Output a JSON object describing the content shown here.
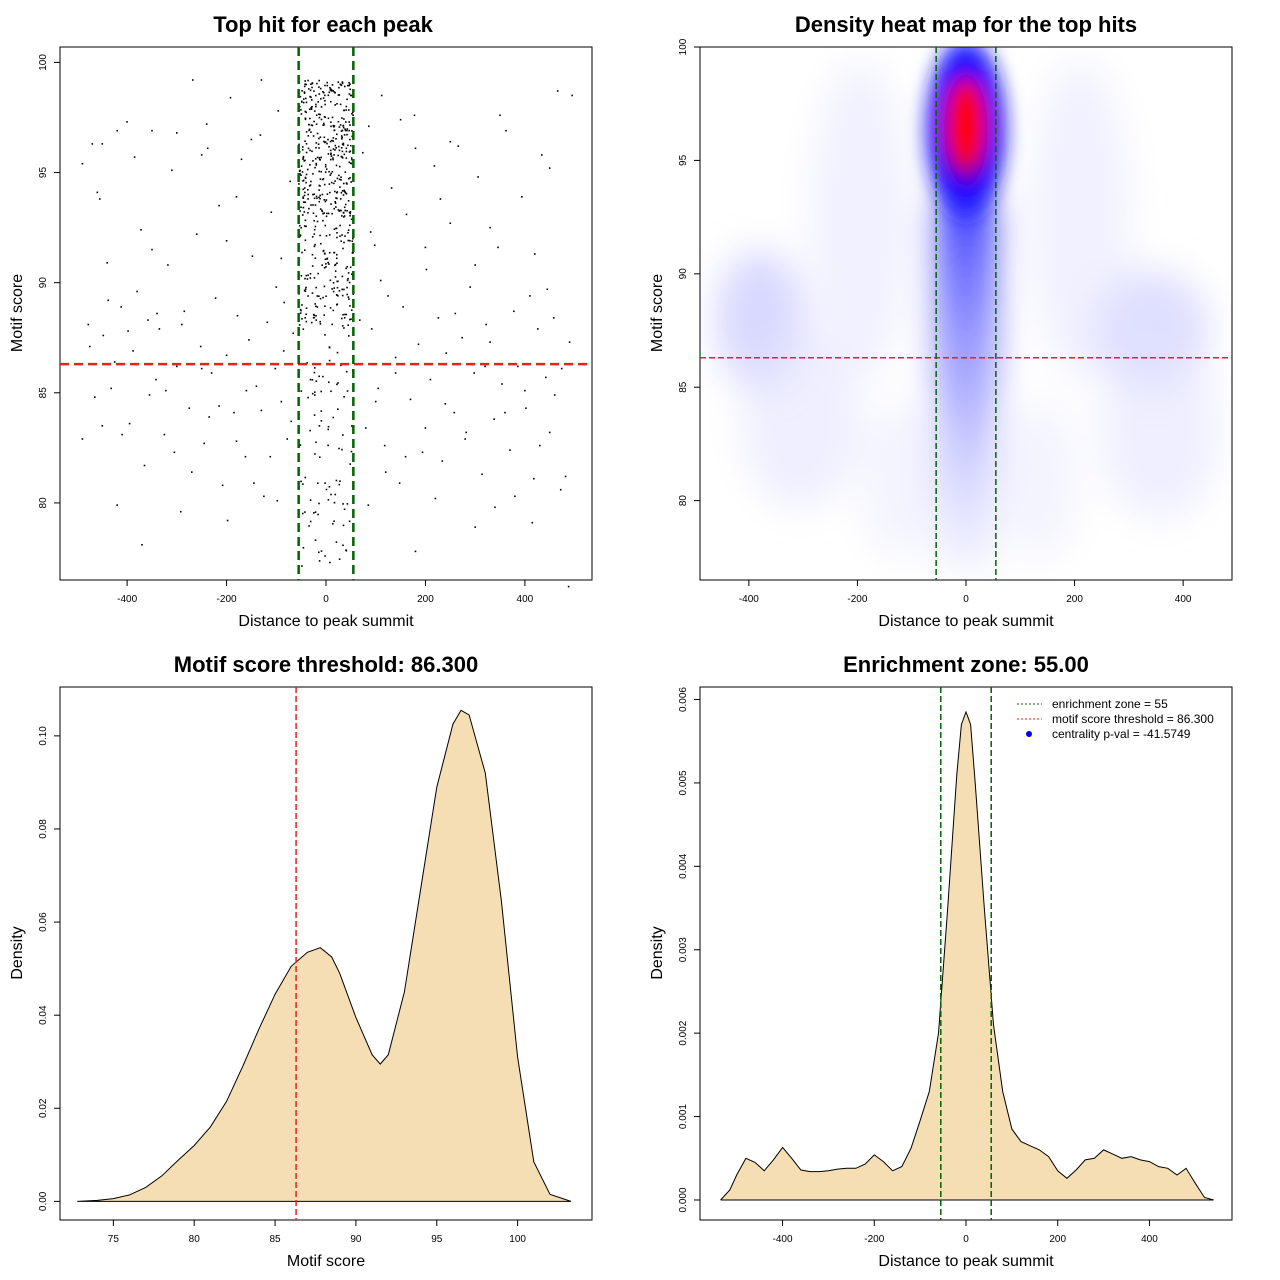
{
  "chart_data": [
    {
      "id": "scatter",
      "type": "scatter",
      "title": "Top hit for each peak",
      "xlabel": "Distance to peak summit",
      "ylabel": "Motif score",
      "xlim": [
        -535,
        535
      ],
      "ylim": [
        76.5,
        100.7
      ],
      "xticks": [
        -400,
        -200,
        0,
        200,
        400
      ],
      "xtick_labels": [
        "-400",
        "-200",
        "0",
        "200",
        "400"
      ],
      "yticks": [
        80,
        85,
        90,
        95,
        100
      ],
      "ytick_labels": [
        "80",
        "85",
        "90",
        "95",
        "100"
      ],
      "threshold_y": 86.3,
      "enrichment_x": [
        -55,
        55
      ],
      "threshold_color": "#e8211d",
      "enrichment_color": "#006400",
      "points": [
        [
          -490,
          95.4
        ],
        [
          -478,
          88.1
        ],
        [
          -470,
          96.3
        ],
        [
          -465,
          84.8
        ],
        [
          -455,
          93.8
        ],
        [
          -448,
          87.6
        ],
        [
          -440,
          90.9
        ],
        [
          -432,
          85.2
        ],
        [
          -420,
          79.9
        ],
        [
          -412,
          88.9
        ],
        [
          -400,
          97.3
        ],
        [
          -395,
          83.6
        ],
        [
          -388,
          86.9
        ],
        [
          -380,
          89.6
        ],
        [
          -372,
          92.4
        ],
        [
          -365,
          81.7
        ],
        [
          -358,
          88.3
        ],
        [
          -350,
          96.9
        ],
        [
          -342,
          85.6
        ],
        [
          -335,
          87.9
        ],
        [
          -325,
          83.1
        ],
        [
          -318,
          90.8
        ],
        [
          -310,
          95.1
        ],
        [
          -300,
          86.2
        ],
        [
          -292,
          79.6
        ],
        [
          -285,
          88.7
        ],
        [
          -275,
          84.3
        ],
        [
          -268,
          99.2
        ],
        [
          -260,
          92.2
        ],
        [
          -252,
          87.1
        ],
        [
          -245,
          82.7
        ],
        [
          -238,
          96.1
        ],
        [
          -230,
          85.9
        ],
        [
          -222,
          89.3
        ],
        [
          -215,
          93.5
        ],
        [
          -208,
          80.8
        ],
        [
          -200,
          86.7
        ],
        [
          -192,
          98.4
        ],
        [
          -185,
          84.1
        ],
        [
          -178,
          88.5
        ],
        [
          -170,
          95.6
        ],
        [
          -162,
          82.1
        ],
        [
          -155,
          87.4
        ],
        [
          -148,
          91.2
        ],
        [
          -140,
          85.3
        ],
        [
          -132,
          96.7
        ],
        [
          -125,
          80.3
        ],
        [
          -118,
          88.2
        ],
        [
          -110,
          93.2
        ],
        [
          -102,
          86.1
        ],
        [
          -96,
          97.8
        ],
        [
          -90,
          84.6
        ],
        [
          -84,
          89.1
        ],
        [
          -78,
          82.9
        ],
        [
          -72,
          94.6
        ],
        [
          -66,
          87.7
        ],
        [
          -490,
          82.9
        ],
        [
          -475,
          87.1
        ],
        [
          -460,
          94.1
        ],
        [
          -450,
          83.5
        ],
        [
          -438,
          89.2
        ],
        [
          -425,
          86.4
        ],
        [
          -410,
          83.1
        ],
        [
          -398,
          87.8
        ],
        [
          -385,
          95.7
        ],
        [
          -370,
          78.1
        ],
        [
          -355,
          84.9
        ],
        [
          -340,
          88.6
        ],
        [
          -322,
          85.1
        ],
        [
          -305,
          82.3
        ],
        [
          -290,
          88.1
        ],
        [
          -270,
          81.4
        ],
        [
          -250,
          86.1
        ],
        [
          -235,
          83.9
        ],
        [
          -215,
          84.4
        ],
        [
          -198,
          79.2
        ],
        [
          -180,
          82.8
        ],
        [
          -160,
          85.1
        ],
        [
          -145,
          80.9
        ],
        [
          -130,
          84.2
        ],
        [
          -112,
          82.1
        ],
        [
          -98,
          80.1
        ],
        [
          -85,
          86.9
        ],
        [
          -70,
          83.7
        ],
        [
          68,
          88.3
        ],
        [
          74,
          95.9
        ],
        [
          80,
          83.4
        ],
        [
          86,
          97.1
        ],
        [
          92,
          87.9
        ],
        [
          98,
          91.7
        ],
        [
          105,
          85.2
        ],
        [
          112,
          98.5
        ],
        [
          118,
          82.6
        ],
        [
          125,
          89.4
        ],
        [
          132,
          94.3
        ],
        [
          140,
          86.6
        ],
        [
          148,
          80.9
        ],
        [
          155,
          88.9
        ],
        [
          162,
          93.1
        ],
        [
          170,
          84.7
        ],
        [
          178,
          97.6
        ],
        [
          186,
          87.2
        ],
        [
          194,
          82.3
        ],
        [
          202,
          90.6
        ],
        [
          210,
          85.6
        ],
        [
          218,
          95.3
        ],
        [
          226,
          88.4
        ],
        [
          234,
          81.9
        ],
        [
          242,
          86.8
        ],
        [
          250,
          92.7
        ],
        [
          258,
          84.1
        ],
        [
          266,
          96.2
        ],
        [
          274,
          87.5
        ],
        [
          282,
          83.2
        ],
        [
          290,
          89.8
        ],
        [
          298,
          85.9
        ],
        [
          306,
          94.8
        ],
        [
          314,
          81.3
        ],
        [
          322,
          88.1
        ],
        [
          330,
          87.3
        ],
        [
          338,
          83.8
        ],
        [
          346,
          91.6
        ],
        [
          354,
          85.4
        ],
        [
          362,
          96.9
        ],
        [
          370,
          82.4
        ],
        [
          378,
          88.7
        ],
        [
          386,
          86.2
        ],
        [
          394,
          93.9
        ],
        [
          402,
          84.3
        ],
        [
          410,
          89.4
        ],
        [
          418,
          81.1
        ],
        [
          426,
          87.9
        ],
        [
          434,
          95.8
        ],
        [
          442,
          85.7
        ],
        [
          450,
          83.2
        ],
        [
          458,
          88.4
        ],
        [
          466,
          98.7
        ],
        [
          474,
          86.1
        ],
        [
          482,
          81.2
        ],
        [
          490,
          87.3
        ],
        [
          495,
          98.5
        ],
        [
          488,
          76.2
        ],
        [
          472,
          80.6
        ],
        [
          460,
          84.9
        ],
        [
          445,
          89.7
        ],
        [
          430,
          82.6
        ],
        [
          415,
          79.1
        ],
        [
          400,
          85.1
        ],
        [
          380,
          80.3
        ],
        [
          360,
          84.1
        ],
        [
          340,
          79.8
        ],
        [
          320,
          86.2
        ],
        [
          300,
          78.9
        ],
        [
          280,
          82.9
        ],
        [
          260,
          88.6
        ],
        [
          240,
          84.5
        ],
        [
          220,
          80.2
        ],
        [
          200,
          83.4
        ],
        [
          180,
          77.8
        ],
        [
          160,
          82.1
        ],
        [
          140,
          85.9
        ],
        [
          120,
          81.4
        ],
        [
          100,
          84.6
        ],
        [
          85,
          79.9
        ],
        [
          -450,
          96.3
        ],
        [
          -350,
          91.5
        ],
        [
          -250,
          95.8
        ],
        [
          -150,
          96.5
        ],
        [
          -130,
          99.2
        ],
        [
          -240,
          97.2
        ],
        [
          -300,
          96.8
        ],
        [
          -420,
          96.9
        ],
        [
          150,
          97.4
        ],
        [
          250,
          96.4
        ],
        [
          350,
          97.6
        ],
        [
          420,
          91.3
        ],
        [
          180,
          96.1
        ],
        [
          230,
          93.8
        ],
        [
          330,
          92.5
        ],
        [
          450,
          95.2
        ],
        [
          -180,
          93.9
        ],
        [
          -90,
          91.1
        ],
        [
          90,
          92.3
        ],
        [
          110,
          90.1
        ],
        [
          -100,
          89.8
        ],
        [
          -200,
          91.9
        ],
        [
          200,
          91.6
        ],
        [
          300,
          90.8
        ]
      ],
      "dense_core": {
        "x_range": [
          -55,
          55
        ],
        "count": 650
      }
    },
    {
      "id": "heatmap",
      "type": "heatmap",
      "title": "Density heat map for the top hits",
      "xlabel": "Distance to peak summit",
      "ylabel": "Motif score",
      "xlim": [
        -490,
        490
      ],
      "ylim": [
        76.5,
        100
      ],
      "xticks": [
        -400,
        -200,
        0,
        200,
        400
      ],
      "xtick_labels": [
        "-400",
        "-200",
        "0",
        "200",
        "400"
      ],
      "yticks": [
        80,
        85,
        90,
        95,
        100
      ],
      "ytick_labels": [
        "80",
        "85",
        "90",
        "95",
        "100"
      ],
      "threshold_y": 86.3,
      "enrichment_x": [
        -55,
        55
      ],
      "threshold_color": "#e8211d",
      "enrichment_color": "#006400",
      "peak": {
        "x": 0,
        "y": 96.6
      },
      "colors": [
        "#ffffff",
        "#0000ff",
        "#ff0000"
      ]
    },
    {
      "id": "scoredens",
      "type": "area",
      "title": "Motif score threshold: 86.300",
      "xlabel": "Motif score",
      "ylabel": "Density",
      "xlim": [
        71.7,
        104.6
      ],
      "ylim": [
        -0.004,
        0.1105
      ],
      "xticks": [
        75,
        80,
        85,
        90,
        95,
        100
      ],
      "xtick_labels": [
        "75",
        "80",
        "85",
        "90",
        "95",
        "100"
      ],
      "yticks": [
        0,
        0.02,
        0.04,
        0.06,
        0.08,
        0.1
      ],
      "ytick_labels": [
        "0.00",
        "0.02",
        "0.04",
        "0.06",
        "0.08",
        "0.10"
      ],
      "threshold_x": 86.3,
      "threshold_color": "#e8211d",
      "fill_color": "#f5deb3",
      "x": [
        72.8,
        74,
        75,
        76,
        77,
        78,
        79,
        80,
        81,
        82,
        83,
        84,
        85,
        86,
        87,
        87.8,
        88.5,
        89,
        90,
        91,
        91.5,
        92,
        93,
        94,
        95,
        96,
        96.5,
        97,
        98,
        99,
        100,
        101,
        102,
        103.3
      ],
      "values": [
        0,
        0.0002,
        0.0006,
        0.0014,
        0.003,
        0.0055,
        0.0088,
        0.012,
        0.016,
        0.0215,
        0.029,
        0.037,
        0.0445,
        0.0505,
        0.0535,
        0.0545,
        0.0525,
        0.049,
        0.0395,
        0.0315,
        0.0295,
        0.0315,
        0.045,
        0.067,
        0.089,
        0.1025,
        0.1055,
        0.1045,
        0.092,
        0.0645,
        0.031,
        0.0085,
        0.0015,
        0
      ]
    },
    {
      "id": "distdens",
      "type": "area",
      "title": "Enrichment zone: 55.00",
      "xlabel": "Distance to peak summit",
      "ylabel": "Density",
      "xlim": [
        -580,
        580
      ],
      "ylim": [
        -0.00024,
        0.00615
      ],
      "xticks": [
        -400,
        -200,
        0,
        200,
        400
      ],
      "xtick_labels": [
        "-400",
        "-200",
        "0",
        "200",
        "400"
      ],
      "yticks": [
        0,
        0.001,
        0.002,
        0.003,
        0.004,
        0.005,
        0.006
      ],
      "ytick_labels": [
        "0.000",
        "0.001",
        "0.002",
        "0.003",
        "0.004",
        "0.005",
        "0.006"
      ],
      "enrichment_x": [
        -55,
        55
      ],
      "enrichment_color": "#006400",
      "fill_color": "#f5deb3",
      "x": [
        -535,
        -515,
        -500,
        -480,
        -460,
        -440,
        -420,
        -400,
        -380,
        -360,
        -340,
        -320,
        -300,
        -280,
        -260,
        -240,
        -220,
        -200,
        -180,
        -160,
        -140,
        -120,
        -100,
        -80,
        -60,
        -40,
        -20,
        -10,
        0,
        10,
        20,
        40,
        60,
        80,
        100,
        120,
        140,
        160,
        180,
        200,
        220,
        240,
        260,
        280,
        300,
        320,
        340,
        360,
        380,
        400,
        420,
        440,
        460,
        480,
        500,
        520,
        540
      ],
      "values": [
        0,
        0.00012,
        0.0003,
        0.0005,
        0.00045,
        0.00035,
        0.00048,
        0.00063,
        0.0005,
        0.00036,
        0.00034,
        0.00034,
        0.00035,
        0.00037,
        0.00038,
        0.00038,
        0.00043,
        0.00054,
        0.00046,
        0.00035,
        0.0004,
        0.00062,
        0.00095,
        0.0013,
        0.002,
        0.0035,
        0.0051,
        0.0057,
        0.00585,
        0.0057,
        0.005,
        0.0035,
        0.0021,
        0.0013,
        0.00085,
        0.0007,
        0.00065,
        0.0006,
        0.00052,
        0.00035,
        0.00026,
        0.00036,
        0.00048,
        0.0005,
        0.0006,
        0.00055,
        0.0005,
        0.00052,
        0.00048,
        0.00046,
        0.0004,
        0.00038,
        0.0003,
        0.00038,
        0.0002,
        3e-05,
        0
      ],
      "legend": [
        {
          "label": "enrichment zone = 55",
          "color": "#006400",
          "style": "dotted-line"
        },
        {
          "label": "motif score threshold = 86.300",
          "color": "#e8211d",
          "style": "dotted-line"
        },
        {
          "label": "centrality p-val = -41.5749",
          "color": "#0000ff",
          "style": "point"
        }
      ]
    }
  ]
}
